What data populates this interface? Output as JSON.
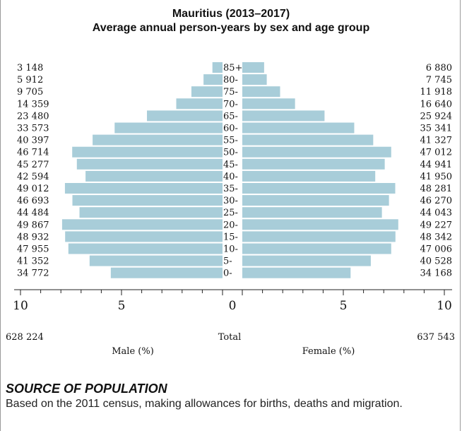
{
  "chart_data": {
    "type": "bar",
    "title": "Mauritius (2013–2017)",
    "subtitle": "Average annual person-years by sex and age group",
    "age_groups": [
      "85+",
      "80-",
      "75-",
      "70-",
      "65-",
      "60-",
      "55-",
      "50-",
      "45-",
      "40-",
      "35-",
      "30-",
      "25-",
      "20-",
      "15-",
      "10-",
      "5-",
      "0-"
    ],
    "series": [
      {
        "name": "Male (%)",
        "counts": [
          "3 148",
          "5 912",
          "9 705",
          "14 359",
          "23 480",
          "33 573",
          "40 397",
          "46 714",
          "45 277",
          "42 594",
          "49 012",
          "46 693",
          "44 484",
          "49 867",
          "48 932",
          "47 955",
          "41 352",
          "34 772"
        ],
        "values": [
          0.5,
          0.94,
          1.54,
          2.29,
          3.74,
          5.34,
          6.43,
          7.44,
          7.21,
          6.78,
          7.8,
          7.43,
          7.08,
          7.94,
          7.79,
          7.63,
          6.58,
          5.53
        ]
      },
      {
        "name": "Female (%)",
        "counts": [
          "6 880",
          "7 745",
          "11 918",
          "16 640",
          "25 924",
          "35 341",
          "41 327",
          "47 012",
          "44 941",
          "41 950",
          "48 281",
          "46 270",
          "44 043",
          "49 227",
          "48 342",
          "47 006",
          "40 528",
          "34 168"
        ],
        "values": [
          1.08,
          1.21,
          1.87,
          2.61,
          4.07,
          5.54,
          6.48,
          7.37,
          7.05,
          6.58,
          7.57,
          7.26,
          6.91,
          7.72,
          7.58,
          7.37,
          6.36,
          5.36
        ]
      }
    ],
    "x_ticks": [
      "10",
      "5",
      "0",
      "5",
      "10"
    ],
    "xlim": [
      0,
      10
    ],
    "totals": {
      "label": "Total",
      "male": "628 224",
      "female": "637 543"
    },
    "bar_color": "#a8cdd9"
  },
  "source": {
    "heading": "SOURCE OF POPULATION",
    "text": "Based on the 2011 census, making allowances for births, deaths and migration."
  }
}
